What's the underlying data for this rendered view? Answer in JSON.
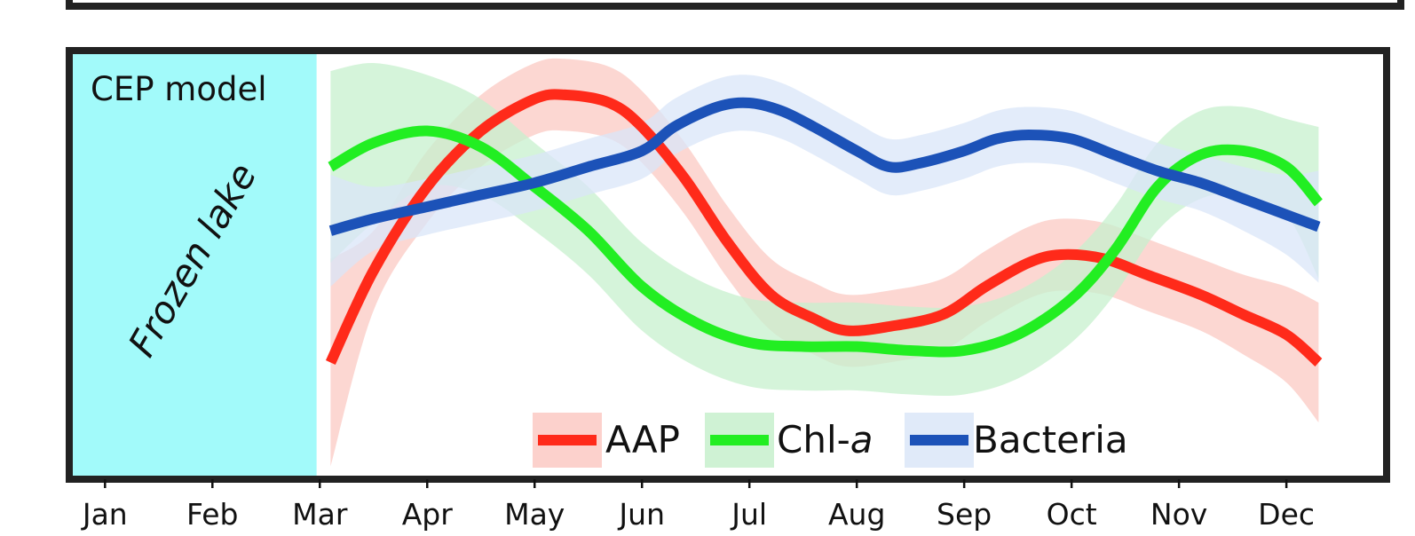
{
  "chart_data": {
    "type": "line",
    "panel_label": "CEP model",
    "shaded_region": {
      "label": "Frozen lake",
      "x_start": 0.0,
      "x_end": 1.97,
      "color": "#a2fafa"
    },
    "x_categories": [
      "Jan",
      "Feb",
      "Mar",
      "Apr",
      "May",
      "Jun",
      "Jul",
      "Aug",
      "Sep",
      "Oct",
      "Nov",
      "Dec"
    ],
    "xlim": [
      -0.3,
      11.9
    ],
    "ylim": [
      0,
      1
    ],
    "grid": false,
    "legend_position": "bottom-center",
    "series": [
      {
        "name": "AAP",
        "name_suffix": "",
        "color": "#ff2a1a",
        "band_color": "#fbc9c3",
        "x": [
          2.1,
          2.5,
          3.0,
          3.5,
          4.0,
          4.3,
          4.7,
          5.0,
          5.4,
          5.8,
          6.2,
          6.6,
          6.9,
          7.3,
          7.8,
          8.2,
          8.6,
          8.9,
          9.3,
          9.7,
          10.2,
          10.6,
          11.0,
          11.3
        ],
        "y": [
          0.27,
          0.5,
          0.71,
          0.85,
          0.93,
          0.94,
          0.92,
          0.86,
          0.73,
          0.57,
          0.44,
          0.38,
          0.35,
          0.36,
          0.39,
          0.46,
          0.52,
          0.54,
          0.53,
          0.49,
          0.44,
          0.39,
          0.34,
          0.27
        ],
        "band": [
          0.26,
          0.1,
          0.09,
          0.09,
          0.09,
          0.09,
          0.09,
          0.09,
          0.09,
          0.09,
          0.09,
          0.09,
          0.09,
          0.09,
          0.09,
          0.09,
          0.09,
          0.09,
          0.09,
          0.09,
          0.09,
          0.1,
          0.12,
          0.15
        ]
      },
      {
        "name": "Chl-",
        "name_suffix": "a",
        "color": "#22ee22",
        "band_color": "#c7f0cd",
        "x": [
          2.1,
          2.5,
          3.0,
          3.5,
          4.0,
          4.5,
          5.0,
          5.5,
          6.0,
          6.5,
          7.0,
          7.5,
          8.0,
          8.5,
          9.0,
          9.4,
          9.8,
          10.2,
          10.6,
          11.0,
          11.3
        ],
        "y": [
          0.76,
          0.82,
          0.85,
          0.81,
          0.71,
          0.6,
          0.46,
          0.37,
          0.32,
          0.31,
          0.31,
          0.3,
          0.3,
          0.34,
          0.43,
          0.55,
          0.71,
          0.79,
          0.8,
          0.76,
          0.67
        ],
        "band": [
          0.24,
          0.2,
          0.14,
          0.12,
          0.11,
          0.11,
          0.11,
          0.11,
          0.11,
          0.11,
          0.11,
          0.11,
          0.11,
          0.11,
          0.11,
          0.11,
          0.11,
          0.11,
          0.11,
          0.12,
          0.19
        ]
      },
      {
        "name": "Bacteria",
        "name_suffix": "",
        "color": "#1c52b8",
        "band_color": "#dae6f8",
        "x": [
          2.1,
          2.5,
          3.0,
          3.5,
          4.0,
          4.5,
          5.0,
          5.3,
          5.7,
          6.0,
          6.3,
          6.6,
          7.0,
          7.3,
          7.6,
          8.0,
          8.3,
          8.6,
          9.0,
          9.4,
          9.8,
          10.2,
          10.6,
          11.0,
          11.3
        ],
        "y": [
          0.6,
          0.63,
          0.66,
          0.69,
          0.72,
          0.76,
          0.8,
          0.86,
          0.91,
          0.92,
          0.9,
          0.86,
          0.8,
          0.76,
          0.77,
          0.8,
          0.83,
          0.84,
          0.83,
          0.79,
          0.75,
          0.72,
          0.68,
          0.64,
          0.61
        ],
        "band": [
          0.14,
          0.08,
          0.07,
          0.07,
          0.07,
          0.07,
          0.07,
          0.07,
          0.07,
          0.07,
          0.07,
          0.07,
          0.07,
          0.07,
          0.07,
          0.07,
          0.07,
          0.07,
          0.07,
          0.07,
          0.07,
          0.07,
          0.08,
          0.1,
          0.14
        ]
      }
    ]
  }
}
